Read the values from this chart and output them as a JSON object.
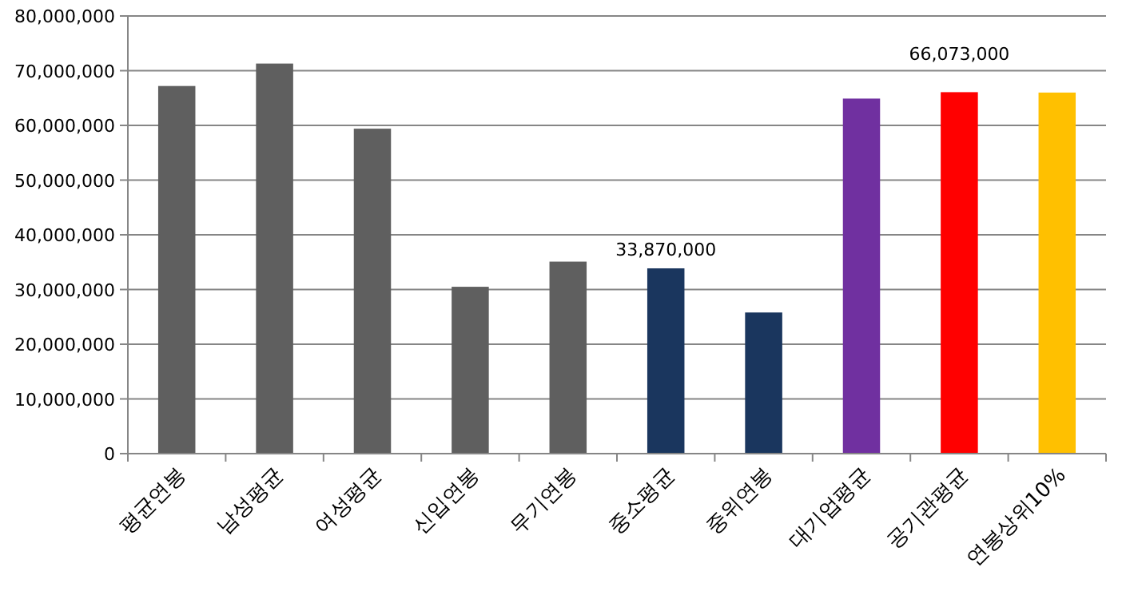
{
  "chart_data": {
    "type": "bar",
    "categories": [
      "평균연봉",
      "남성평균",
      "여성평균",
      "신입연봉",
      "무기연봉",
      "중소평균",
      "중위연봉",
      "대기업평균",
      "공기관평균",
      "연봉상위10%"
    ],
    "values": [
      67200000,
      71300000,
      59400000,
      30500000,
      35100000,
      33870000,
      25800000,
      64900000,
      66073000,
      66000000
    ],
    "colors": [
      "#5f5f5f",
      "#5f5f5f",
      "#5f5f5f",
      "#5f5f5f",
      "#5f5f5f",
      "#1a365e",
      "#1a365e",
      "#7030a0",
      "#ff0000",
      "#ffc000"
    ],
    "value_labels": [
      null,
      null,
      null,
      null,
      null,
      "33,870,000",
      null,
      null,
      "66,073,000",
      null
    ],
    "ylim": [
      0,
      80000000
    ],
    "yticks": [
      {
        "value": 0,
        "label": "0"
      },
      {
        "value": 10000000,
        "label": "10,000,000"
      },
      {
        "value": 20000000,
        "label": "20,000,000"
      },
      {
        "value": 30000000,
        "label": "30,000,000"
      },
      {
        "value": 40000000,
        "label": "40,000,000"
      },
      {
        "value": 50000000,
        "label": "50,000,000"
      },
      {
        "value": 60000000,
        "label": "60,000,000"
      },
      {
        "value": 70000000,
        "label": "70,000,000"
      },
      {
        "value": 80000000,
        "label": "80,000,000"
      }
    ],
    "grid": "y"
  }
}
